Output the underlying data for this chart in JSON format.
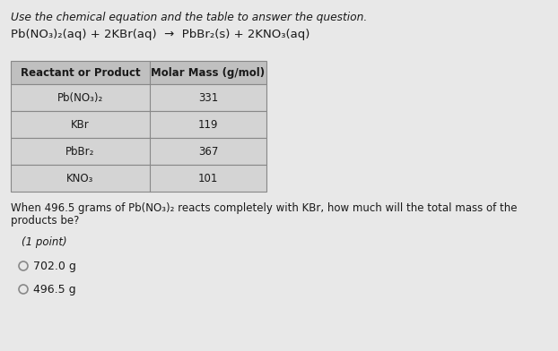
{
  "title_line": "Use the chemical equation and the table to answer the question.",
  "equation": "Pb(NO₃)₂(aq) + 2KBr(aq)  →  PbBr₂(s) + 2KNO₃(aq)",
  "table_headers": [
    "Reactant or Product",
    "Molar Mass (g/mol)"
  ],
  "table_rows": [
    [
      "Pb(NO₃)₂",
      "331"
    ],
    [
      "KBr",
      "119"
    ],
    [
      "PbBr₂",
      "367"
    ],
    [
      "KNO₃",
      "101"
    ]
  ],
  "question_line1": "When 496.5 grams of Pb(NO₃)₂ reacts completely with KBr, how much will the total mass of the",
  "question_line2": "products be?",
  "point_label": "(1 point)",
  "choices": [
    "702.0 g",
    "496.5 g"
  ],
  "bg_color": "#e8e8e8",
  "table_row_bg": "#d4d4d4",
  "table_header_bg": "#c0c0c0",
  "table_border": "#888888",
  "text_color": "#1a1a1a"
}
